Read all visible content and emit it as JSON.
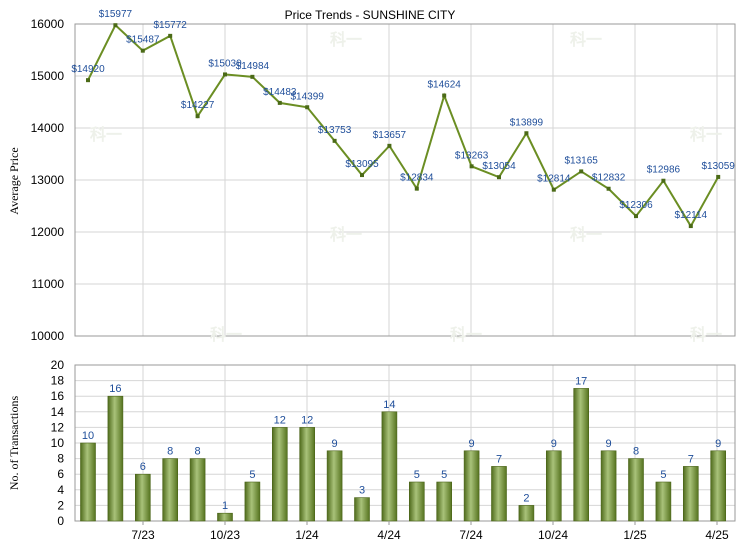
{
  "chart_data": [
    {
      "type": "line",
      "title": "Price Trends - SUNSHINE CITY",
      "ylabel": "Average Price",
      "ylim": [
        10000,
        16000
      ],
      "yticks": [
        10000,
        11000,
        12000,
        13000,
        14000,
        15000,
        16000
      ],
      "grid": true,
      "line_color": "#6b8e23",
      "series": [
        {
          "values": [
            14920,
            15977,
            15487,
            15772,
            14227,
            15030,
            14984,
            14483,
            14399,
            13753,
            13095,
            13657,
            12834,
            14624,
            13263,
            13054,
            13899,
            12814,
            13165,
            12832,
            12306,
            12986,
            12114,
            13059
          ],
          "labels": [
            "$14920",
            "$15977",
            "$15487",
            "$15772",
            "$14227",
            "$15030",
            "$14984",
            "$14483",
            "$14399",
            "$13753",
            "$13095",
            "$13657",
            "$12834",
            "$14624",
            "$13263",
            "$13054",
            "$13899",
            "$12814",
            "$13165",
            "$12832",
            "$12306",
            "$12986",
            "$12114",
            "$13059"
          ]
        }
      ]
    },
    {
      "type": "bar",
      "ylabel": "No. of Transactions",
      "ylim": [
        0,
        20
      ],
      "yticks": [
        0,
        2,
        4,
        6,
        8,
        10,
        12,
        14,
        16,
        18,
        20
      ],
      "grid": true,
      "bar_color": "#6b8e23",
      "values": [
        10,
        16,
        6,
        8,
        8,
        1,
        5,
        12,
        12,
        9,
        3,
        14,
        5,
        5,
        9,
        7,
        2,
        9,
        17,
        9,
        8,
        5,
        7,
        9
      ],
      "x_tick_labels": [
        "7/23",
        "10/23",
        "1/24",
        "4/24",
        "7/24",
        "10/24",
        "1/25",
        "4/25"
      ]
    }
  ],
  "watermark": "科一"
}
